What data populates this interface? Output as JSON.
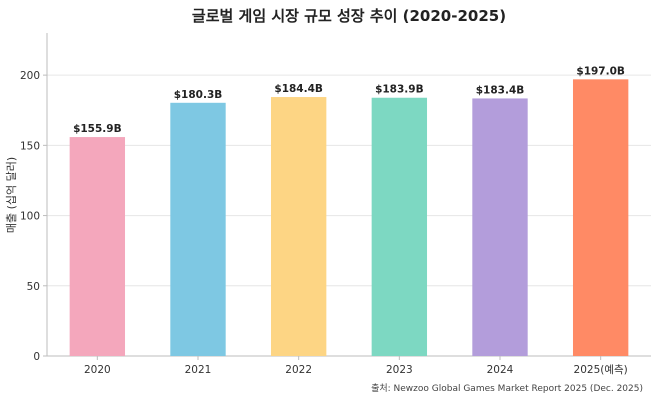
{
  "chart_data": {
    "type": "bar",
    "title": "글로벌 게임 시장 규모 성장 추이 (2020-2025)",
    "ylabel": "매출 (십억 달러)",
    "xlabel": "",
    "categories": [
      "2020",
      "2021",
      "2022",
      "2023",
      "2024",
      "2025(예측)"
    ],
    "values": [
      155.9,
      180.3,
      184.4,
      183.9,
      183.4,
      197.0
    ],
    "data_labels": [
      "$155.9B",
      "$180.3B",
      "$184.4B",
      "$183.9B",
      "$183.4B",
      "$197.0B"
    ],
    "colors": [
      "#F4A7BC",
      "#7EC8E3",
      "#FDD584",
      "#7DD8C2",
      "#B39DDB",
      "#FF8A65"
    ],
    "ylim": [
      0,
      230
    ],
    "yticks": [
      0,
      50,
      100,
      150,
      200
    ],
    "grid": true,
    "source": "출처: Newzoo Global Games Market Report 2025 (Dec. 2025)"
  }
}
